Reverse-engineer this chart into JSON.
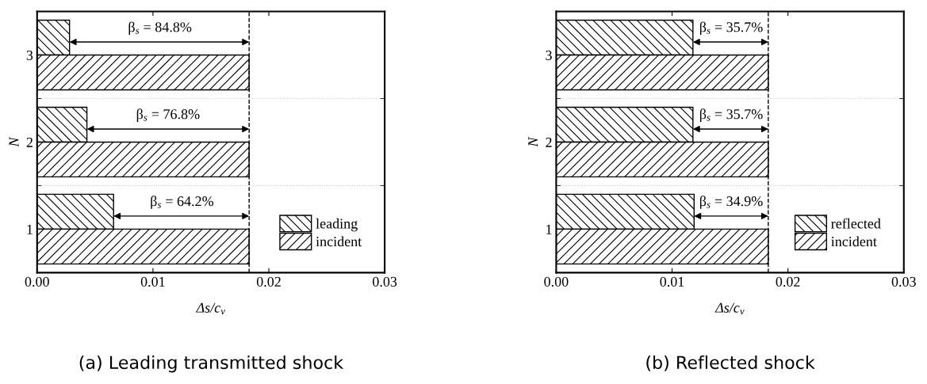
{
  "chart_data": [
    {
      "type": "bar",
      "orientation": "horizontal",
      "categories": [
        "3",
        "2",
        "1"
      ],
      "xlabel": "Δs/c$_{v}$",
      "ylabel": "N",
      "xlim": [
        0,
        0.03
      ],
      "xticks": [
        {
          "value": 0,
          "label": "0.00"
        },
        0.01,
        0.02,
        0.03
      ],
      "grid": "y",
      "legend": "bottom right",
      "series": [
        {
          "name": "leading",
          "color": "#000000",
          "values": [
            0.0028,
            0.0043,
            0.0066
          ]
        },
        {
          "name": "incident",
          "color": "#000000",
          "values": [
            0.0183,
            0.0183,
            0.0183
          ]
        }
      ],
      "ref_lines": [
        {
          "axis": "x",
          "value": 0.0183,
          "color": "#000000",
          "line_style": "dashed"
        }
      ],
      "annotations": [
        {
          "text": "β$_{s}$ = 84.8%",
          "x": 0.0106,
          "y": "3"
        },
        {
          "text": "β$_{s}$ = 76.8%",
          "x": 0.0113,
          "y": "2"
        },
        {
          "text": "β$_{s}$ = 64.2%",
          "x": 0.0125,
          "y": "1"
        },
        "(a) Leading transmitted shock"
      ]
    },
    {
      "type": "bar",
      "orientation": "horizontal",
      "categories": [
        "3",
        "2",
        "1"
      ],
      "xlabel": "Δs/c$_{v}$",
      "ylabel": "N",
      "xlim": [
        0,
        0.03
      ],
      "xticks": [
        {
          "value": 0,
          "label": "0.00"
        },
        0.01,
        0.02,
        0.03
      ],
      "grid": "y",
      "legend": "bottom right",
      "series": [
        {
          "name": "reflected",
          "color": "#000000",
          "values": [
            0.0118,
            0.0118,
            0.0119
          ]
        },
        {
          "name": "incident",
          "color": "#000000",
          "values": [
            0.0183,
            0.0183,
            0.0183
          ]
        }
      ],
      "ref_lines": [
        {
          "axis": "x",
          "value": 0.0183,
          "color": "#000000",
          "line_style": "dashed"
        }
      ],
      "annotations": [
        {
          "text": "β$_{s}$ = 35.7%",
          "x": 0.0151,
          "y": "3"
        },
        {
          "text": "β$_{s}$ = 35.7%",
          "x": 0.0151,
          "y": "2"
        },
        {
          "text": "β$_{s}$ = 34.9%",
          "x": 0.0151,
          "y": "1"
        },
        "(b) Reflected shock"
      ]
    }
  ]
}
